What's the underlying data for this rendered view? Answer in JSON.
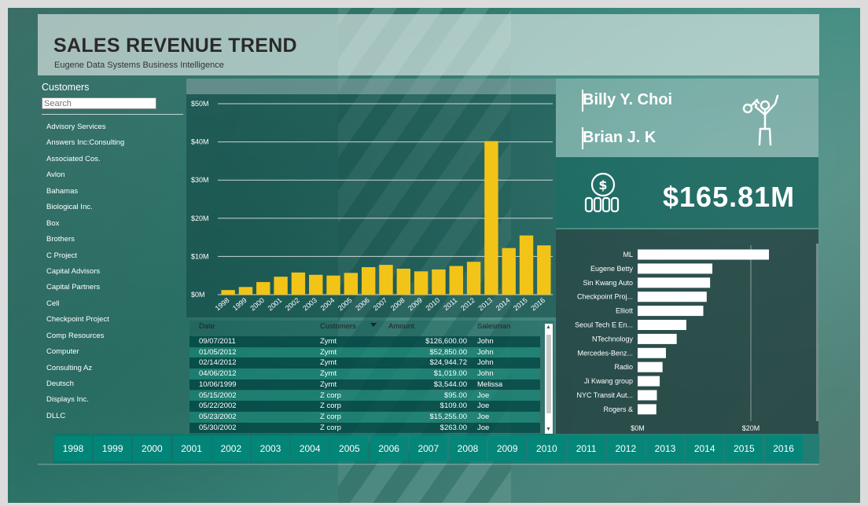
{
  "header": {
    "title": "SALES REVENUE TREND",
    "subtitle": "Eugene Data Systems Business Intelligence"
  },
  "customers": {
    "title": "Customers",
    "search_placeholder": "Search",
    "items": [
      "Advisory Services",
      "Answers Inc:Consulting",
      "Associated Cos.",
      "Avlon",
      "Bahamas",
      "Biological Inc.",
      "Box",
      "Brothers",
      "C Project",
      "Capital Advisors",
      "Capital Partners",
      "Cell",
      "Checkpoint Project",
      "Comp Resources",
      "Computer",
      "Consulting Az",
      "Deutsch",
      "Displays Inc.",
      "DLLC"
    ]
  },
  "salesmen": {
    "names": [
      "Billy Y. Choi",
      "Brian J. K"
    ],
    "icon": "key-person-icon"
  },
  "kpi": {
    "value": "$165.81M",
    "icon": "dollar-coins-icon"
  },
  "revenue_table": {
    "columns": [
      "Date",
      "Customers",
      "Amount",
      "Salesman"
    ],
    "rows": [
      [
        "09/07/2011",
        "Zymt",
        "$126,600.00",
        "John"
      ],
      [
        "01/05/2012",
        "Zymt",
        "$52,850.00",
        "John"
      ],
      [
        "02/14/2012",
        "Zymt",
        "$24,944.72",
        "John"
      ],
      [
        "04/06/2012",
        "Zymt",
        "$1,019.00",
        "John"
      ],
      [
        "10/06/1999",
        "Zymt",
        "$3,544.00",
        "Melissa"
      ],
      [
        "05/15/2002",
        "Z corp",
        "$95.00",
        "Joe"
      ],
      [
        "05/22/2002",
        "Z corp",
        "$109.00",
        "Joe"
      ],
      [
        "05/23/2002",
        "Z corp",
        "$15,255.00",
        "Joe"
      ],
      [
        "05/30/2002",
        "Z corp",
        "$263.00",
        "Joe"
      ]
    ]
  },
  "years": [
    "1998",
    "1999",
    "2000",
    "2001",
    "2002",
    "2003",
    "2004",
    "2005",
    "2006",
    "2007",
    "2008",
    "2009",
    "2010",
    "2011",
    "2012",
    "2013",
    "2014",
    "2015",
    "2016"
  ],
  "chart_data": [
    {
      "type": "bar",
      "categories": [
        "1998",
        "1999",
        "2000",
        "2001",
        "2002",
        "2003",
        "2004",
        "2005",
        "2006",
        "2007",
        "2008",
        "2009",
        "2010",
        "2011",
        "2012",
        "2013",
        "2014",
        "2015",
        "2016"
      ],
      "values": [
        1.2,
        2.0,
        3.3,
        4.7,
        5.8,
        5.2,
        5.0,
        5.7,
        7.2,
        7.8,
        6.8,
        6.1,
        6.6,
        7.5,
        8.6,
        40.2,
        12.2,
        15.5,
        12.9
      ],
      "yticks": [
        "$0M",
        "$10M",
        "$20M",
        "$30M",
        "$40M",
        "$50M"
      ],
      "ylim": [
        0,
        50
      ],
      "grid": true,
      "bar_color": "#f2c418"
    },
    {
      "type": "bar",
      "orientation": "horizontal",
      "categories": [
        "ML",
        "Eugene Betty",
        "Sin Kwang Auto",
        "Checkpoint Proj...",
        "Elliott",
        "Seoul Tech E En...",
        "NTechnology",
        "Mercedes-Benz...",
        "Radio",
        "Ji Kwang group",
        "NYC Transit Aut...",
        "Rogers &"
      ],
      "values": [
        23.2,
        13.2,
        12.8,
        12.2,
        11.6,
        8.6,
        6.9,
        5.0,
        4.4,
        3.9,
        3.4,
        3.3
      ],
      "xticks": [
        "$0M",
        "$20M"
      ],
      "xlim": [
        0,
        30
      ],
      "bar_color": "#ffffff"
    }
  ]
}
